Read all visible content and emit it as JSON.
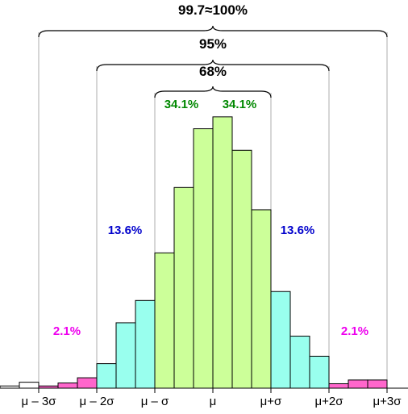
{
  "chart_data": {
    "type": "bar",
    "categories": [
      "b01",
      "b02",
      "b03",
      "b04",
      "b05",
      "b06",
      "b07",
      "b08",
      "b09",
      "b10",
      "b11",
      "b12",
      "b13",
      "b14",
      "b15",
      "b16",
      "b17",
      "b18",
      "b19",
      "b20"
    ],
    "values": [
      0.3,
      0.8,
      0.3,
      0.7,
      1.4,
      3.3,
      8.8,
      11.8,
      18.2,
      27.0,
      34.9,
      36.5,
      32.0,
      24.0,
      13.0,
      7.0,
      4.3,
      0.6,
      1.1,
      1.1
    ],
    "bar_colors": [
      "#ffffff",
      "#ffffff",
      "#ff66cc",
      "#ff66cc",
      "#ff66cc",
      "#99ffee",
      "#99ffee",
      "#99ffee",
      "#ccff99",
      "#ccff99",
      "#ccff99",
      "#ccff99",
      "#ccff99",
      "#ccff99",
      "#99ffee",
      "#99ffee",
      "#99ffee",
      "#ff66cc",
      "#ff66cc",
      "#ff66cc"
    ],
    "x_ticks": [
      "μ – 3σ",
      "μ – 2σ",
      "μ – σ",
      "μ",
      "μ+σ",
      "μ+2σ",
      "μ+3σ"
    ],
    "region_labels": [
      {
        "text": "2.1%",
        "color": "#ee00ee",
        "region": "left-tail"
      },
      {
        "text": "13.6%",
        "color": "#0000cc",
        "region": "left-shoulder"
      },
      {
        "text": "34.1%",
        "color": "#008800",
        "region": "left-center"
      },
      {
        "text": "34.1%",
        "color": "#008800",
        "region": "right-center"
      },
      {
        "text": "13.6%",
        "color": "#0000cc",
        "region": "right-shoulder"
      },
      {
        "text": "2.1%",
        "color": "#ee00ee",
        "region": "right-tail"
      }
    ],
    "braces": [
      {
        "label": "68%",
        "from_sigma": -1,
        "to_sigma": 1
      },
      {
        "label": "95%",
        "from_sigma": -2,
        "to_sigma": 2
      },
      {
        "label": "99.7≈100%",
        "from_sigma": -3,
        "to_sigma": 3
      }
    ],
    "ylim": [
      0,
      38
    ],
    "grid": false,
    "legend": "none",
    "colors": {
      "tail": "#ff66cc",
      "shoulder": "#99ffee",
      "center": "#ccff99",
      "outer": "#ffffff",
      "guide_line": "#999999"
    }
  }
}
